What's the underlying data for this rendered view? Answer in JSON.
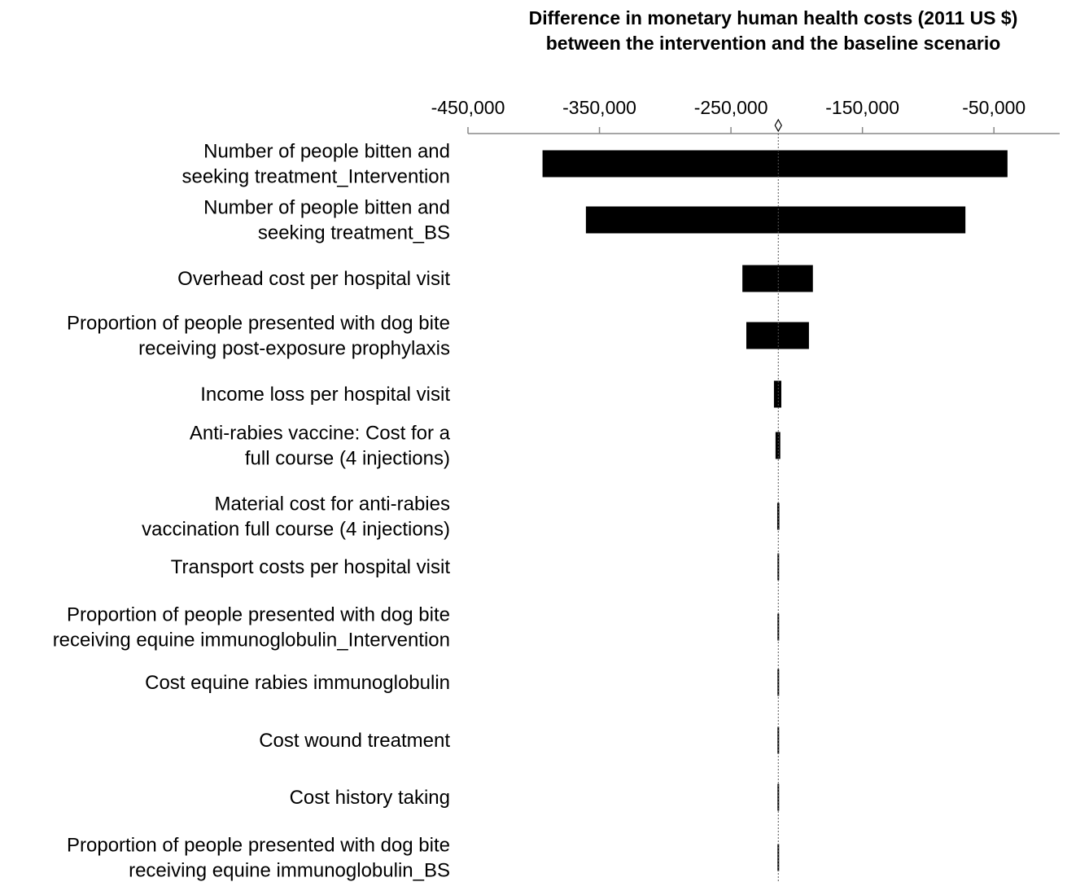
{
  "chart_data": {
    "type": "tornado",
    "title_lines": [
      "Difference in monetary human health costs (2011 US $)",
      "between the intervention and the baseline scenario"
    ],
    "xlim": [
      -450000,
      0
    ],
    "ticks": [
      -450000,
      -350000,
      -250000,
      -150000,
      -50000
    ],
    "tick_labels": [
      "-450,000",
      "-350,000",
      "-250,000",
      "-150,000",
      "-50,000"
    ],
    "base_value": -214000,
    "bars": [
      {
        "label_lines": [
          "Number of people bitten and",
          "seeking treatment_Intervention"
        ],
        "low": -393000,
        "high": -40000
      },
      {
        "label_lines": [
          "Number of people bitten and",
          "seeking treatment_BS"
        ],
        "low": -360000,
        "high": -72000
      },
      {
        "label_lines": [
          "Overhead cost per hospital visit"
        ],
        "low": -241000,
        "high": -188000
      },
      {
        "label_lines": [
          "Proportion of people presented with dog bite",
          "receiving post-exposure prophylaxis"
        ],
        "low": -238000,
        "high": -191000
      },
      {
        "label_lines": [
          "Income loss per hospital visit"
        ],
        "low": -217000,
        "high": -212000
      },
      {
        "label_lines": [
          "Anti-rabies vaccine: Cost for a",
          "full course (4 injections)"
        ],
        "low": -215800,
        "high": -212800
      },
      {
        "label_lines": [
          "Material cost for anti-rabies",
          "vaccination full course (4 injections)"
        ],
        "low": -214500,
        "high": -213500
      },
      {
        "label_lines": [
          "Transport costs per hospital visit"
        ],
        "low": -214300,
        "high": -213700
      },
      {
        "label_lines": [
          "Proportion of people presented with dog bite",
          "receiving equine immunoglobulin_Intervention"
        ],
        "low": -214300,
        "high": -213700
      },
      {
        "label_lines": [
          "Cost equine rabies immunoglobulin"
        ],
        "low": -214300,
        "high": -213700
      },
      {
        "label_lines": [
          "Cost wound treatment"
        ],
        "low": -214300,
        "high": -213700
      },
      {
        "label_lines": [
          "Cost history taking"
        ],
        "low": -214300,
        "high": -213700
      },
      {
        "label_lines": [
          "Proportion of people presented with dog bite",
          "receiving equine immunoglobulin_BS"
        ],
        "low": -214300,
        "high": -213700
      }
    ]
  }
}
